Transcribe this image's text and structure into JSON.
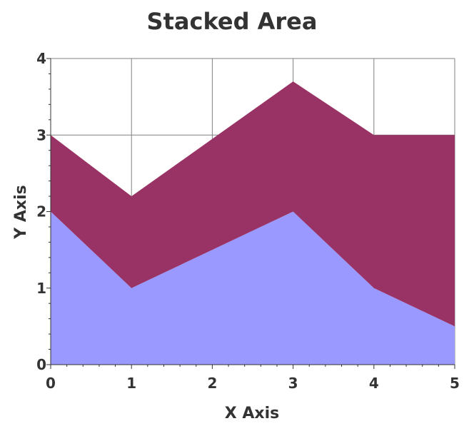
{
  "chart_data": {
    "type": "area",
    "stacked": true,
    "title": "Stacked Area",
    "xlabel": "X Axis",
    "ylabel": "Y Axis",
    "x": [
      0,
      1,
      2,
      3,
      4,
      5
    ],
    "xlim": [
      0,
      5
    ],
    "ylim": [
      0,
      4
    ],
    "x_ticks": [
      "0",
      "1",
      "2",
      "3",
      "4",
      "5"
    ],
    "y_ticks": [
      "0",
      "1",
      "2",
      "3",
      "4"
    ],
    "grid": true,
    "series": [
      {
        "values": [
          2,
          1,
          1.5,
          2,
          1,
          0.5
        ],
        "color": "#9999ff"
      },
      {
        "values": [
          1,
          1.2,
          1.45,
          1.7,
          2,
          2.5
        ],
        "color": "#993366"
      }
    ],
    "colors": {
      "grid": "#808080",
      "axis": "#333333",
      "text": "#333333"
    }
  }
}
